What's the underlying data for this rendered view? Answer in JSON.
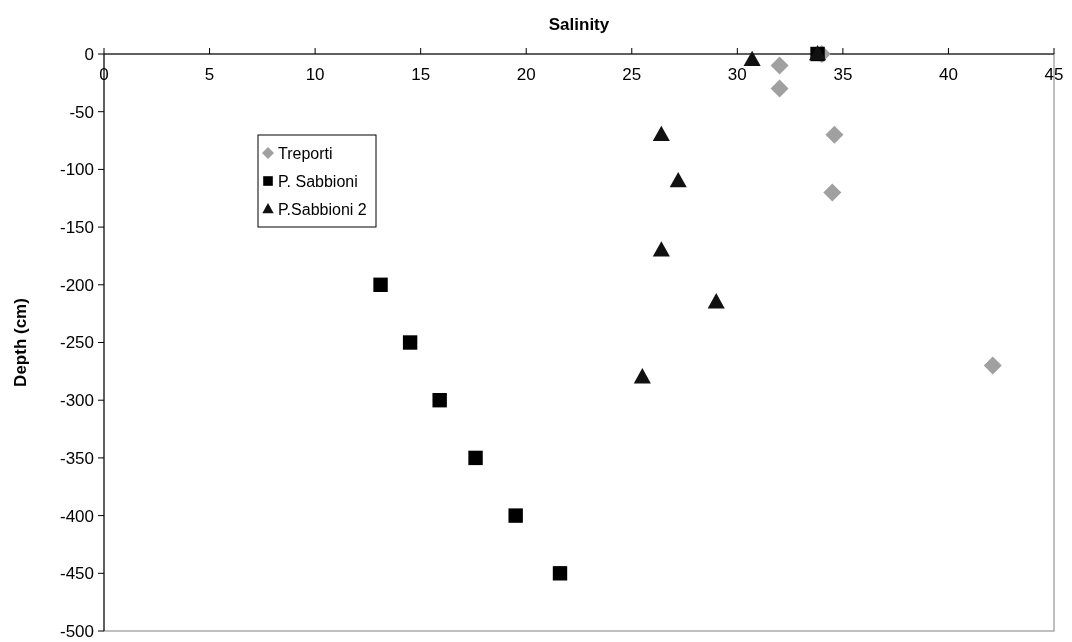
{
  "chart_data": {
    "type": "scatter",
    "xlabel": "Salinity",
    "ylabel": "Depth (cm)",
    "xlim": [
      0,
      45
    ],
    "xticks": [
      0,
      5,
      10,
      15,
      20,
      25,
      30,
      35,
      40,
      45
    ],
    "ylim": [
      -500,
      0
    ],
    "yticks": [
      -500,
      -450,
      -400,
      -350,
      -300,
      -250,
      -200,
      -150,
      -100,
      -50,
      0
    ],
    "grid": false,
    "legend": "top left",
    "series": [
      {
        "name": "Treporti",
        "color": "#a0a0a0",
        "marker": "diamond",
        "x": [
          34.0,
          32.0,
          32.0,
          34.6,
          34.5,
          42.1
        ],
        "values": [
          0,
          -10,
          -30,
          -70,
          -120,
          -270
        ]
      },
      {
        "name": "P. Sabbioni",
        "color": "#000000",
        "marker": "square",
        "x": [
          33.8,
          13.1,
          14.5,
          15.9,
          17.6,
          19.5,
          21.6
        ],
        "values": [
          0,
          -200,
          -250,
          -300,
          -350,
          -400,
          -450
        ]
      },
      {
        "name": "P.Sabbioni 2",
        "color": "#111111",
        "marker": "triangle",
        "x": [
          33.8,
          30.7,
          26.4,
          27.2,
          26.4,
          29.0,
          25.5
        ],
        "values": [
          0,
          -5,
          -70,
          -110,
          -170,
          -215,
          -280
        ]
      }
    ]
  }
}
